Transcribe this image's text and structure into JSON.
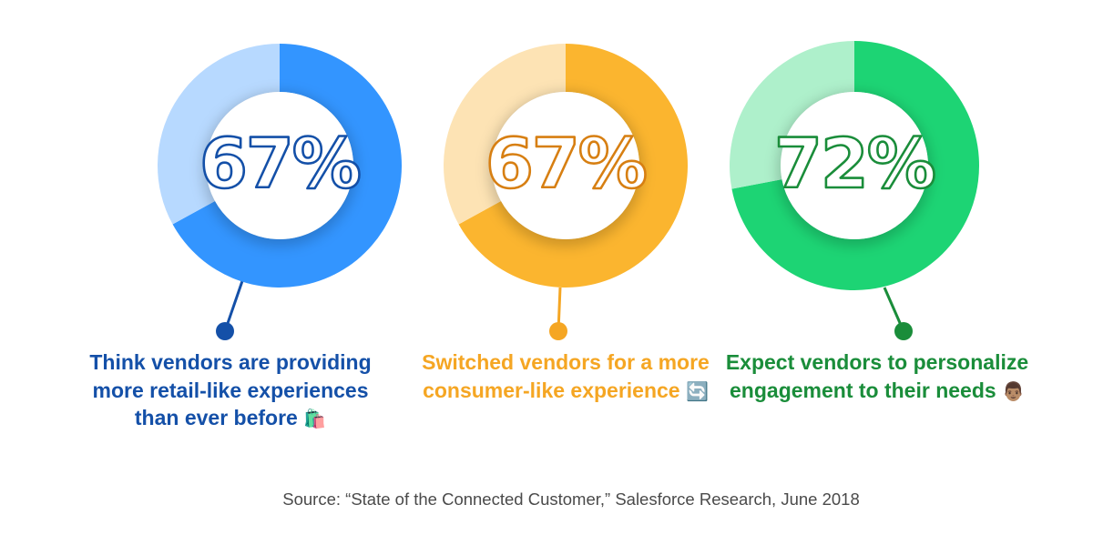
{
  "chart_data": [
    {
      "type": "pie",
      "value": 67,
      "center_label": "67%",
      "caption_text": "Think vendors are providing more retail-like experiences than ever before",
      "caption_emoji": "🛍️",
      "colors": {
        "fill": "#3395ff",
        "track": "#b7d9ff",
        "text": "#1450a8",
        "dot": "#1450a8"
      }
    },
    {
      "type": "pie",
      "value": 67,
      "center_label": "67%",
      "caption_text": "Switched vendors for a more consumer-like experience",
      "caption_emoji": "🔄",
      "colors": {
        "fill": "#fbb52f",
        "track": "#fde3b4",
        "text": "#f5a623",
        "dot": "#f5a623",
        "number_stroke": "#d77f12"
      }
    },
    {
      "type": "pie",
      "value": 72,
      "center_label": "72%",
      "caption_text": "Expect vendors to personalize engagement to their needs",
      "caption_emoji": "👨🏽",
      "colors": {
        "fill": "#1dd474",
        "track": "#aef0cb",
        "text": "#1a8d3a",
        "dot": "#1a8d3a",
        "number_stroke": "#1a8d3a"
      }
    }
  ],
  "source": "Source: “State of the Connected Customer,” Salesforce Research, June 2018"
}
